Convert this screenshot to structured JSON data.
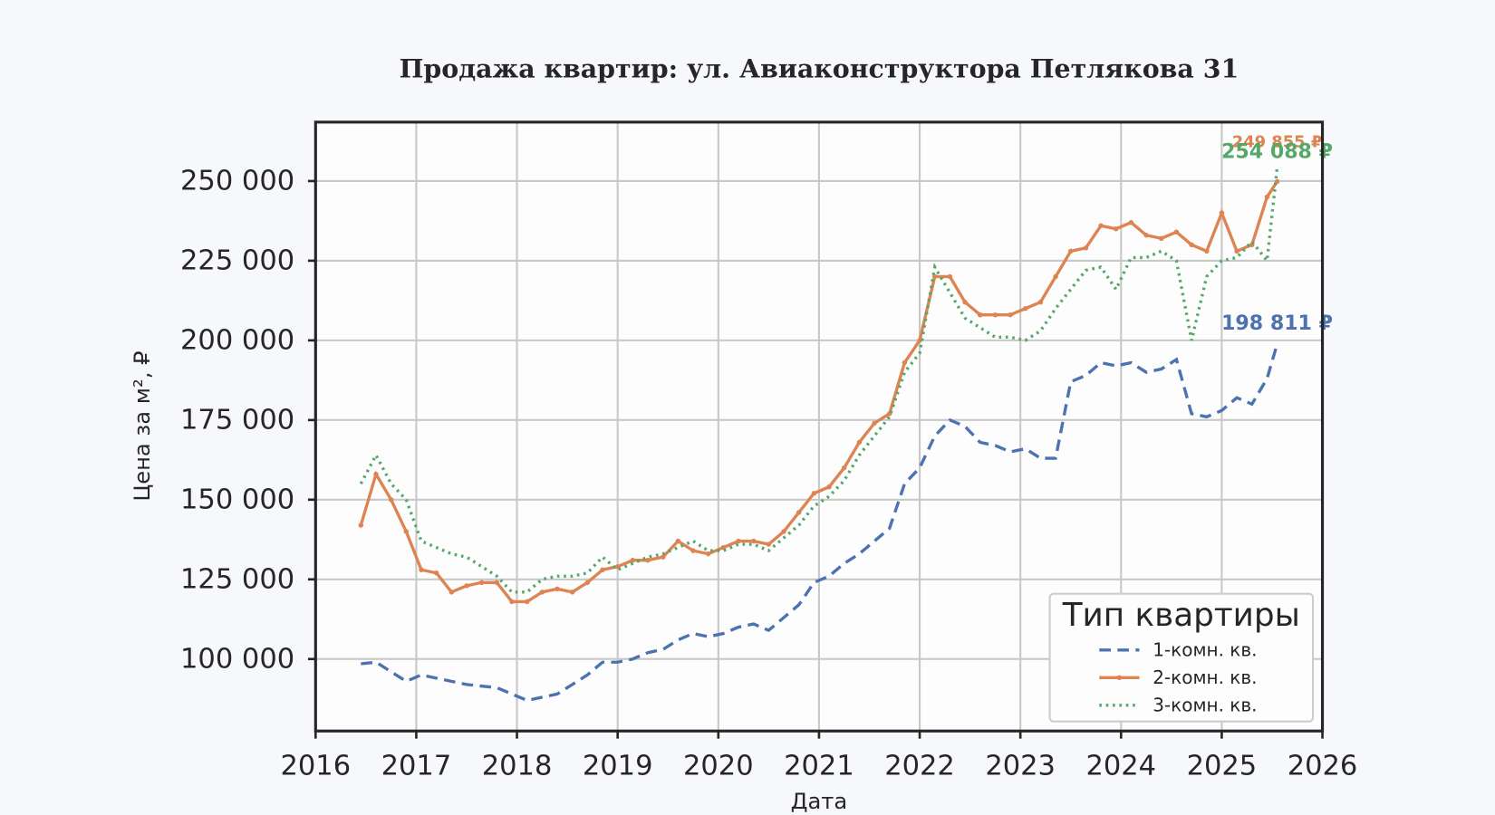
{
  "chart_data": {
    "type": "line",
    "title": "Продажа квартир: ул. Авиаконструктора Петлякова 31",
    "x_label": "Дата",
    "y_label": "Цена за м², ₽",
    "legend_title": "Тип квартиры",
    "legend": "lower right",
    "grid": true,
    "xlim": [
      2016,
      2026
    ],
    "xticks": [
      2016,
      2017,
      2018,
      2019,
      2020,
      2021,
      2022,
      2023,
      2024,
      2025,
      2026
    ],
    "ylim": [
      77400,
      268500
    ],
    "yticks": [
      {
        "value": 100000,
        "label": "100 000"
      },
      {
        "value": 125000,
        "label": "125 000"
      },
      {
        "value": 150000,
        "label": "150 000"
      },
      {
        "value": 175000,
        "label": "175 000"
      },
      {
        "value": 200000,
        "label": "200 000"
      },
      {
        "value": 225000,
        "label": "225 000"
      },
      {
        "value": 250000,
        "label": "250 000"
      }
    ],
    "x": [
      2016.45,
      2016.6,
      2016.75,
      2016.9,
      2017.05,
      2017.2,
      2017.35,
      2017.5,
      2017.65,
      2017.8,
      2017.95,
      2018.1,
      2018.25,
      2018.4,
      2018.55,
      2018.7,
      2018.85,
      2019.0,
      2019.15,
      2019.3,
      2019.45,
      2019.6,
      2019.75,
      2019.9,
      2020.05,
      2020.2,
      2020.35,
      2020.5,
      2020.65,
      2020.8,
      2020.95,
      2021.1,
      2021.25,
      2021.4,
      2021.55,
      2021.7,
      2021.85,
      2022.0,
      2022.15,
      2022.3,
      2022.45,
      2022.6,
      2022.75,
      2022.9,
      2023.05,
      2023.2,
      2023.35,
      2023.5,
      2023.65,
      2023.8,
      2023.95,
      2024.1,
      2024.25,
      2024.4,
      2024.55,
      2024.7,
      2024.85,
      2025.0,
      2025.15,
      2025.3,
      2025.45,
      2025.55
    ],
    "series": [
      {
        "name": "1-комн. кв.",
        "color": "#4c72b0",
        "linestyle": "dashed",
        "marker": false,
        "values": [
          98500,
          99000,
          96000,
          93000,
          95000,
          94000,
          93000,
          92000,
          91500,
          91000,
          89000,
          87000,
          88000,
          89000,
          92000,
          95000,
          99000,
          99000,
          100000,
          102000,
          103000,
          106000,
          108000,
          107000,
          108000,
          110000,
          111000,
          109000,
          113000,
          117000,
          124000,
          126000,
          130000,
          133000,
          137000,
          141000,
          155000,
          160000,
          170000,
          175000,
          173000,
          168000,
          167000,
          165000,
          166000,
          163000,
          163000,
          187000,
          189000,
          193000,
          192000,
          193000,
          190000,
          191000,
          194000,
          177000,
          176000,
          178000,
          182000,
          180000,
          188000,
          198811
        ]
      },
      {
        "name": "2-комн. кв.",
        "color": "#dd8452",
        "linestyle": "solid",
        "marker": true,
        "values": [
          142000,
          158000,
          150000,
          140000,
          128000,
          127000,
          121000,
          123000,
          124000,
          124000,
          118000,
          118000,
          121000,
          122000,
          121000,
          124000,
          128000,
          129000,
          131000,
          131000,
          132000,
          137000,
          134000,
          133000,
          135000,
          137000,
          137000,
          136000,
          140000,
          146000,
          152000,
          154000,
          160000,
          168000,
          174000,
          177000,
          193000,
          200000,
          220000,
          220000,
          212000,
          208000,
          208000,
          208000,
          210000,
          212000,
          220000,
          228000,
          229000,
          236000,
          235000,
          237000,
          233000,
          232000,
          234000,
          230000,
          228000,
          240000,
          228000,
          230000,
          245000,
          249855
        ]
      },
      {
        "name": "3-комн. кв.",
        "color": "#55a868",
        "linestyle": "dotted",
        "marker": false,
        "values": [
          155000,
          164000,
          155000,
          150000,
          137000,
          135000,
          133000,
          132000,
          129000,
          126000,
          121000,
          121000,
          125000,
          126000,
          126000,
          127000,
          132000,
          128000,
          130000,
          132000,
          133000,
          135000,
          137000,
          134000,
          134000,
          136000,
          136000,
          134000,
          138000,
          142000,
          148000,
          151000,
          156000,
          164000,
          170000,
          176000,
          190000,
          196000,
          223000,
          215000,
          207000,
          204000,
          201000,
          201000,
          200000,
          203000,
          210000,
          216000,
          222000,
          223000,
          216000,
          226000,
          226000,
          228000,
          225000,
          200000,
          220000,
          225000,
          226000,
          231000,
          225000,
          254088
        ]
      }
    ],
    "annotations": [
      {
        "text": "198 811 ₽",
        "x": 2025.55,
        "y": 198811,
        "color": "#4c72b0"
      },
      {
        "text": "249 855 ₽",
        "x": 2025.55,
        "y": 249855,
        "color": "#dd8452"
      },
      {
        "text": "254 088 ₽",
        "x": 2025.55,
        "y": 254088,
        "color": "#55a868"
      }
    ]
  }
}
